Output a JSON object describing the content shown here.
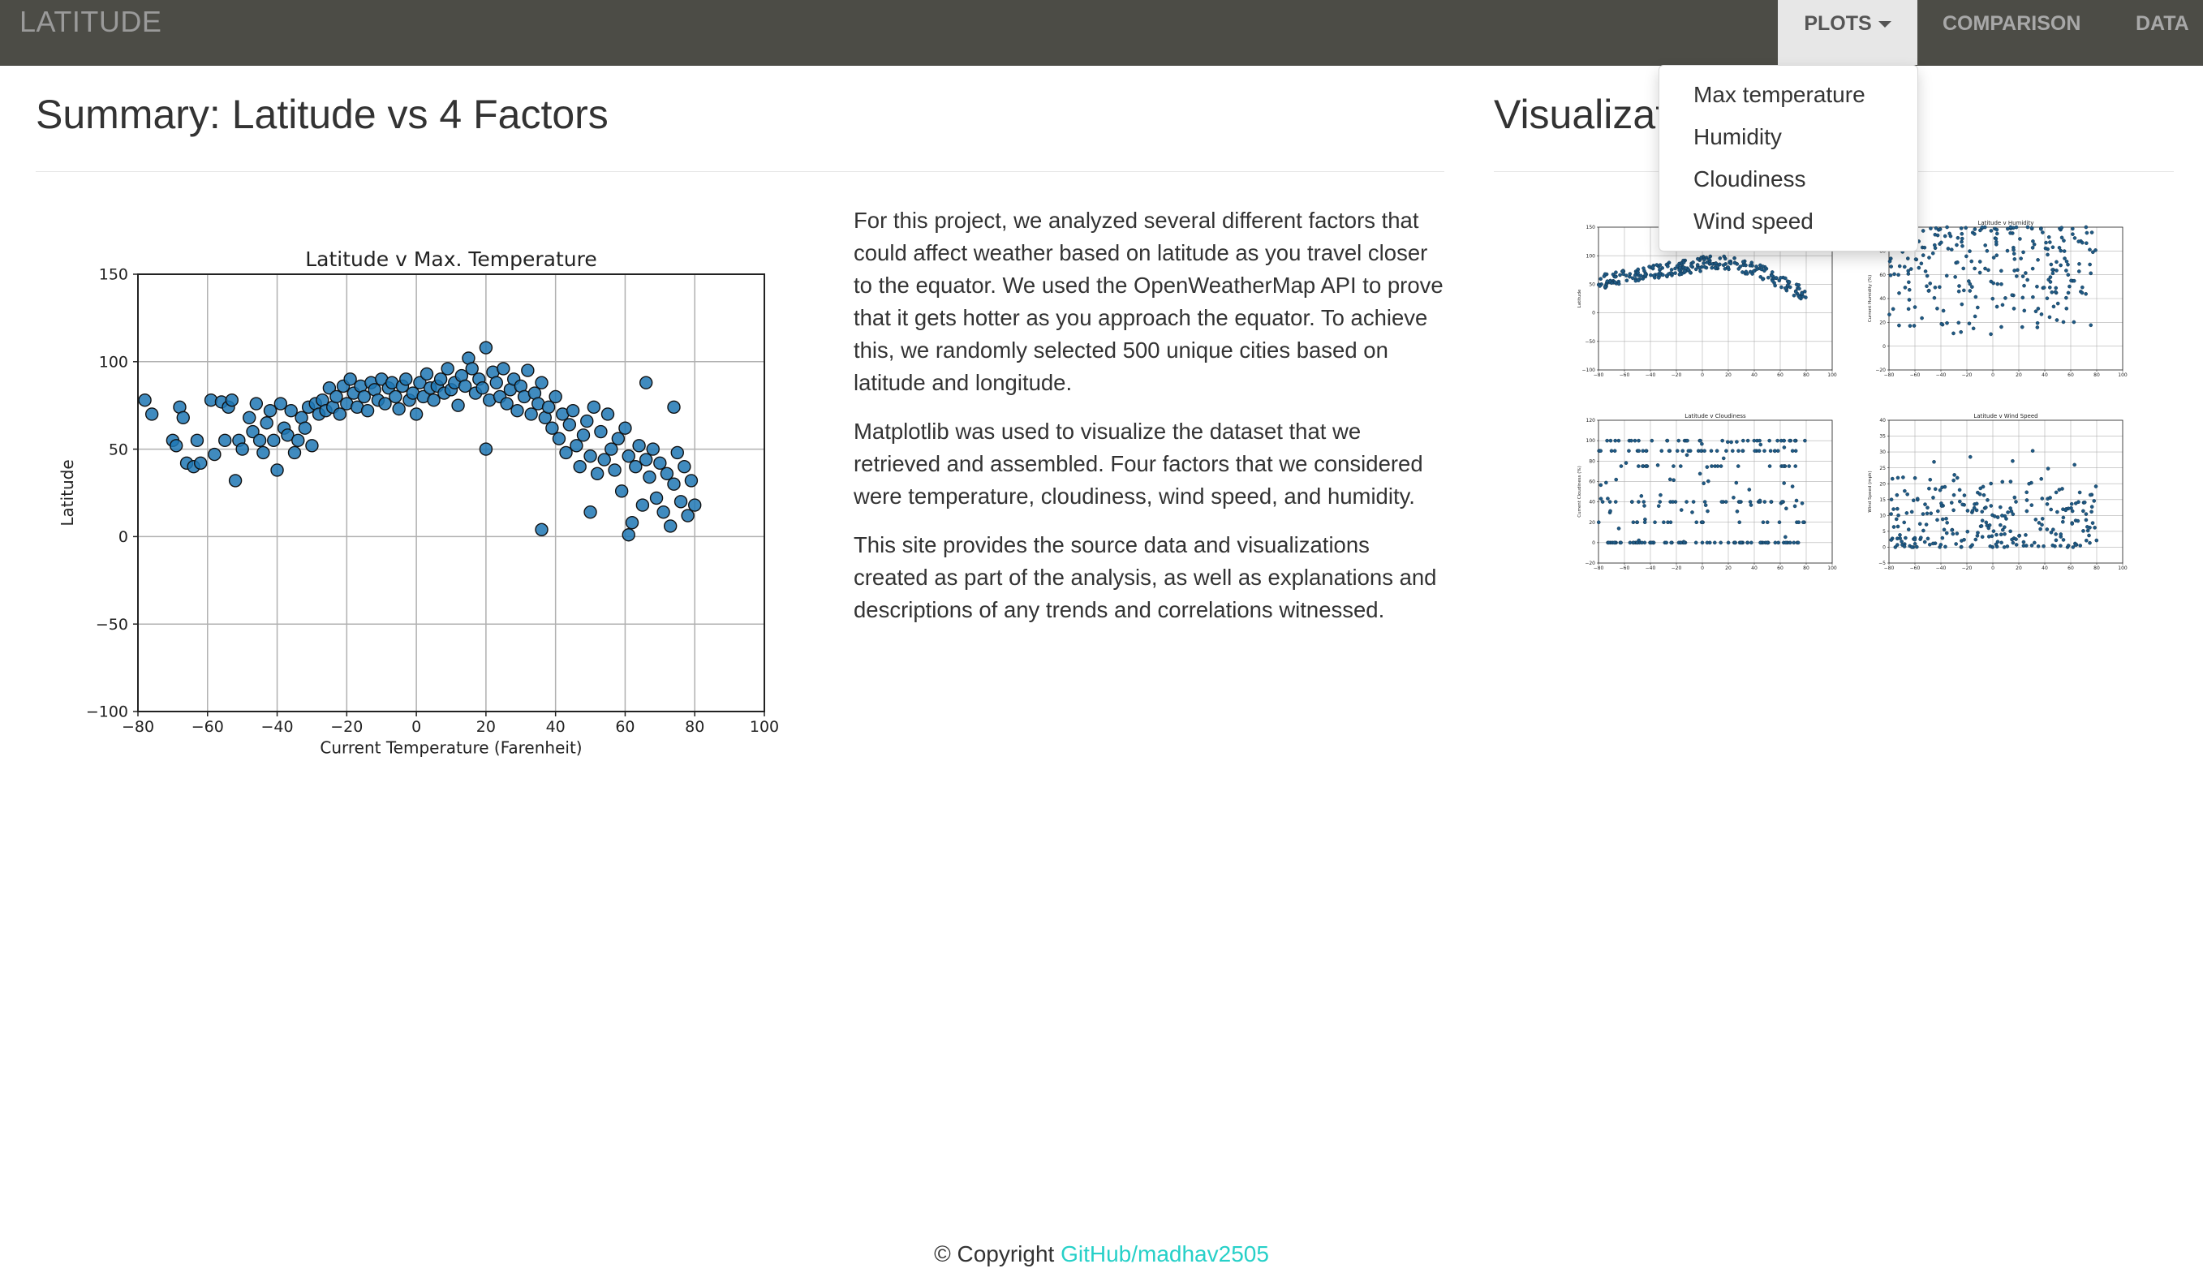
{
  "navbar": {
    "brand": "LATITUDE",
    "plots_label": "PLOTS",
    "comparison_label": "COMPARISON",
    "data_label": "DATA"
  },
  "dropdown": {
    "items": [
      "Max temperature",
      "Humidity",
      "Cloudiness",
      "Wind speed"
    ]
  },
  "summary": {
    "title": "Summary: Latitude vs 4 Factors",
    "paragraphs": [
      "For this project, we analyzed several different factors that could affect weather based on latitude as you travel closer to the equator. We used the OpenWeatherMap API to prove that it gets hotter as you approach the equator. To achieve this, we randomly selected 500 unique cities based on latitude and longitude.",
      "Matplotlib was used to visualize the dataset that we retrieved and assembled. Four factors that we considered were temperature, cloudiness, wind speed, and humidity.",
      "This site provides the source data and visualizations created as part of the analysis, as well as explanations and descriptions of any trends and correlations witnessed."
    ]
  },
  "visualizations": {
    "title": "Visualizat"
  },
  "footer": {
    "copyright": "© Copyright",
    "link_text": "GitHub/madhav2505"
  },
  "colors": {
    "navbar": "#4c4c46",
    "marker": "#1f77b4",
    "link": "#26d0c8"
  },
  "chart_data": [
    {
      "type": "scatter",
      "title": "Latitude v Max. Temperature",
      "xlabel": "Current Temperature (Farenheit)",
      "ylabel": "Latitude",
      "xlim": [
        -80,
        100
      ],
      "ylim": [
        -100,
        150
      ],
      "xticks": [
        -80,
        -60,
        -40,
        -20,
        0,
        20,
        40,
        60,
        80,
        100
      ],
      "yticks": [
        -100,
        -50,
        0,
        50,
        100,
        150
      ],
      "xtick_labels": [
        "−80",
        "−60",
        "−40",
        "−20",
        "0",
        "20",
        "40",
        "60",
        "80",
        "100"
      ],
      "ytick_labels": [
        "−100",
        "−50",
        "0",
        "50",
        "100",
        "150"
      ],
      "grid": true,
      "points": [
        [
          -78,
          78
        ],
        [
          -76,
          70
        ],
        [
          -70,
          55
        ],
        [
          -69,
          52
        ],
        [
          -68,
          74
        ],
        [
          -67,
          68
        ],
        [
          -66,
          42
        ],
        [
          -64,
          40
        ],
        [
          -63,
          55
        ],
        [
          -62,
          42
        ],
        [
          -59,
          78
        ],
        [
          -58,
          47
        ],
        [
          -56,
          77
        ],
        [
          -55,
          55
        ],
        [
          -54,
          74
        ],
        [
          -53,
          78
        ],
        [
          -52,
          32
        ],
        [
          -51,
          55
        ],
        [
          -50,
          50
        ],
        [
          -48,
          68
        ],
        [
          -47,
          60
        ],
        [
          -46,
          76
        ],
        [
          -45,
          55
        ],
        [
          -44,
          48
        ],
        [
          -43,
          65
        ],
        [
          -42,
          72
        ],
        [
          -41,
          55
        ],
        [
          -40,
          38
        ],
        [
          -39,
          76
        ],
        [
          -38,
          62
        ],
        [
          -37,
          58
        ],
        [
          -36,
          72
        ],
        [
          -35,
          48
        ],
        [
          -34,
          55
        ],
        [
          -33,
          68
        ],
        [
          -32,
          62
        ],
        [
          -31,
          74
        ],
        [
          -30,
          52
        ],
        [
          -29,
          76
        ],
        [
          -28,
          70
        ],
        [
          -27,
          78
        ],
        [
          -26,
          72
        ],
        [
          -25,
          85
        ],
        [
          -24,
          74
        ],
        [
          -23,
          80
        ],
        [
          -22,
          70
        ],
        [
          -21,
          86
        ],
        [
          -20,
          76
        ],
        [
          -19,
          90
        ],
        [
          -18,
          82
        ],
        [
          -17,
          74
        ],
        [
          -16,
          86
        ],
        [
          -15,
          80
        ],
        [
          -14,
          72
        ],
        [
          -13,
          88
        ],
        [
          -12,
          84
        ],
        [
          -11,
          78
        ],
        [
          -10,
          90
        ],
        [
          -9,
          76
        ],
        [
          -8,
          85
        ],
        [
          -7,
          88
        ],
        [
          -6,
          80
        ],
        [
          -5,
          73
        ],
        [
          -4,
          86
        ],
        [
          -3,
          90
        ],
        [
          -2,
          78
        ],
        [
          -1,
          82
        ],
        [
          0,
          70
        ],
        [
          1,
          88
        ],
        [
          2,
          80
        ],
        [
          3,
          93
        ],
        [
          4,
          85
        ],
        [
          5,
          78
        ],
        [
          6,
          86
        ],
        [
          7,
          90
        ],
        [
          8,
          82
        ],
        [
          9,
          96
        ],
        [
          10,
          84
        ],
        [
          11,
          88
        ],
        [
          12,
          75
        ],
        [
          13,
          92
        ],
        [
          14,
          86
        ],
        [
          15,
          102
        ],
        [
          16,
          96
        ],
        [
          17,
          82
        ],
        [
          18,
          90
        ],
        [
          19,
          85
        ],
        [
          20,
          108
        ],
        [
          21,
          78
        ],
        [
          22,
          94
        ],
        [
          23,
          88
        ],
        [
          24,
          80
        ],
        [
          25,
          96
        ],
        [
          26,
          76
        ],
        [
          27,
          84
        ],
        [
          28,
          90
        ],
        [
          29,
          72
        ],
        [
          30,
          86
        ],
        [
          31,
          80
        ],
        [
          32,
          95
        ],
        [
          33,
          70
        ],
        [
          34,
          82
        ],
        [
          35,
          76
        ],
        [
          36,
          88
        ],
        [
          37,
          68
        ],
        [
          38,
          74
        ],
        [
          39,
          62
        ],
        [
          40,
          80
        ],
        [
          41,
          56
        ],
        [
          42,
          70
        ],
        [
          43,
          48
        ],
        [
          44,
          64
        ],
        [
          45,
          72
        ],
        [
          46,
          52
        ],
        [
          47,
          40
        ],
        [
          48,
          58
        ],
        [
          49,
          66
        ],
        [
          50,
          46
        ],
        [
          51,
          74
        ],
        [
          52,
          36
        ],
        [
          53,
          60
        ],
        [
          54,
          44
        ],
        [
          55,
          70
        ],
        [
          56,
          50
        ],
        [
          57,
          38
        ],
        [
          58,
          56
        ],
        [
          59,
          26
        ],
        [
          60,
          62
        ],
        [
          61,
          46
        ],
        [
          62,
          8
        ],
        [
          63,
          40
        ],
        [
          64,
          52
        ],
        [
          65,
          18
        ],
        [
          66,
          44
        ],
        [
          67,
          34
        ],
        [
          68,
          50
        ],
        [
          69,
          22
        ],
        [
          70,
          42
        ],
        [
          71,
          14
        ],
        [
          72,
          36
        ],
        [
          73,
          6
        ],
        [
          74,
          30
        ],
        [
          75,
          48
        ],
        [
          76,
          20
        ],
        [
          77,
          40
        ],
        [
          78,
          12
        ],
        [
          79,
          32
        ],
        [
          80,
          18
        ],
        [
          36,
          4
        ],
        [
          61,
          1
        ],
        [
          74,
          74
        ],
        [
          20,
          50
        ],
        [
          50,
          14
        ],
        [
          66,
          88
        ]
      ]
    },
    {
      "type": "scatter",
      "title": "",
      "xlim": [
        -80,
        100
      ],
      "ylim": [
        -100,
        150
      ],
      "xticks": [
        -80,
        -60,
        -40,
        -20,
        0,
        20,
        40,
        60,
        80,
        100
      ],
      "yticks": [
        -100,
        -50,
        0,
        50,
        100,
        150
      ],
      "xtick_labels": [
        "−80",
        "−60",
        "−40",
        "−20",
        "0",
        "20",
        "40",
        "60",
        "80",
        "100"
      ],
      "ytick_labels": [
        "−100",
        "−50",
        "0",
        "50",
        "100",
        "150"
      ],
      "xlabel": "Current Temperature (Farenheit)",
      "ylabel": "Latitude"
    },
    {
      "type": "scatter",
      "title": "Latitude v Humidity",
      "xlim": [
        -80,
        100
      ],
      "ylim": [
        -20,
        100
      ],
      "xticks": [
        -80,
        -60,
        -40,
        -20,
        0,
        20,
        40,
        60,
        80,
        100
      ],
      "yticks": [
        -20,
        0,
        20,
        40,
        60,
        80,
        100
      ],
      "xtick_labels": [
        "−80",
        "−60",
        "−40",
        "−20",
        "0",
        "20",
        "40",
        "60",
        "80",
        "100"
      ],
      "ytick_labels": [
        "−20",
        "0",
        "20",
        "40",
        "60",
        "80",
        "100"
      ],
      "xlabel": "Latitude",
      "ylabel": "Current Humidity (%)"
    },
    {
      "type": "scatter",
      "title": "Latitude v Cloudiness",
      "xlim": [
        -80,
        100
      ],
      "ylim": [
        -20,
        120
      ],
      "xticks": [
        -80,
        -60,
        -40,
        -20,
        0,
        20,
        40,
        60,
        80,
        100
      ],
      "yticks": [
        -20,
        0,
        20,
        40,
        60,
        80,
        100,
        120
      ],
      "xtick_labels": [
        "−80",
        "−60",
        "−40",
        "−20",
        "0",
        "20",
        "40",
        "60",
        "80",
        "100"
      ],
      "ytick_labels": [
        "−20",
        "0",
        "20",
        "40",
        "60",
        "80",
        "100",
        "120"
      ],
      "xlabel": "Latitude",
      "ylabel": "Current Cloudiness (%)"
    },
    {
      "type": "scatter",
      "title": "Latitude v Wind Speed",
      "xlim": [
        -80,
        100
      ],
      "ylim": [
        -5,
        40
      ],
      "xticks": [
        -80,
        -60,
        -40,
        -20,
        0,
        20,
        40,
        60,
        80,
        100
      ],
      "yticks": [
        -5,
        0,
        5,
        10,
        15,
        20,
        25,
        30,
        35,
        40
      ],
      "xtick_labels": [
        "−80",
        "−60",
        "−40",
        "−20",
        "0",
        "20",
        "40",
        "60",
        "80",
        "100"
      ],
      "ytick_labels": [
        "−5",
        "0",
        "5",
        "10",
        "15",
        "20",
        "25",
        "30",
        "35",
        "40"
      ],
      "xlabel": "Latitude",
      "ylabel": "Wind Speed (mph)"
    }
  ]
}
